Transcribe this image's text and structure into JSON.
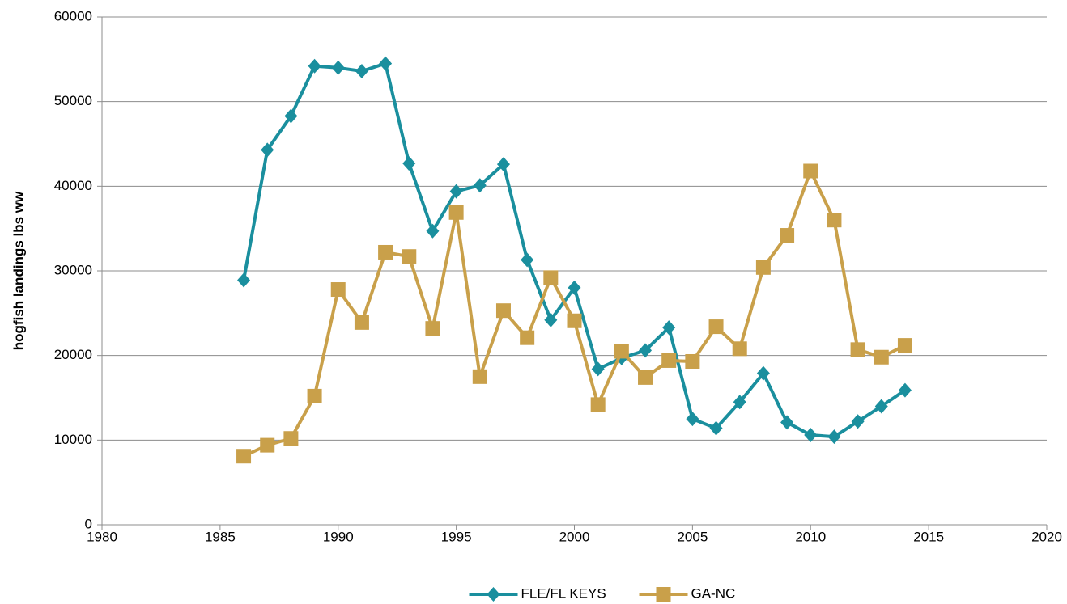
{
  "chart_data": {
    "type": "line",
    "y_label": "hogfish landings lbs ww",
    "x": [
      1986,
      1987,
      1988,
      1989,
      1990,
      1991,
      1992,
      1993,
      1994,
      1995,
      1996,
      1997,
      1998,
      1999,
      2000,
      2001,
      2002,
      2003,
      2004,
      2005,
      2006,
      2007,
      2008,
      2009,
      2010,
      2011,
      2012,
      2013,
      2014
    ],
    "series": [
      {
        "name": "FLE/FL KEYS",
        "color": "#1a8f9e",
        "marker": "diamond",
        "values": [
          28900,
          44300,
          48300,
          54200,
          54000,
          53600,
          54500,
          42700,
          34700,
          39400,
          40100,
          42600,
          31300,
          24200,
          28000,
          18400,
          19700,
          20600,
          23300,
          12500,
          11400,
          14500,
          17900,
          12100,
          10600,
          10400,
          12200,
          14000,
          15900
        ]
      },
      {
        "name": "GA-NC",
        "color": "#c9a04a",
        "marker": "square",
        "values": [
          8100,
          9400,
          10200,
          15200,
          27800,
          23900,
          32200,
          31700,
          23200,
          36900,
          17500,
          25300,
          22100,
          29200,
          24100,
          14200,
          20500,
          17400,
          19400,
          19300,
          23400,
          20800,
          30400,
          34200,
          41800,
          36000,
          20700,
          19800,
          21200
        ]
      }
    ],
    "xlim": [
      1980,
      2020
    ],
    "xticks": [
      1980,
      1985,
      1990,
      1995,
      2000,
      2005,
      2010,
      2015,
      2020
    ],
    "ylim": [
      0,
      60000
    ],
    "yticks": [
      0,
      10000,
      20000,
      30000,
      40000,
      50000,
      60000
    ],
    "grid": true,
    "legend": "bottom"
  }
}
